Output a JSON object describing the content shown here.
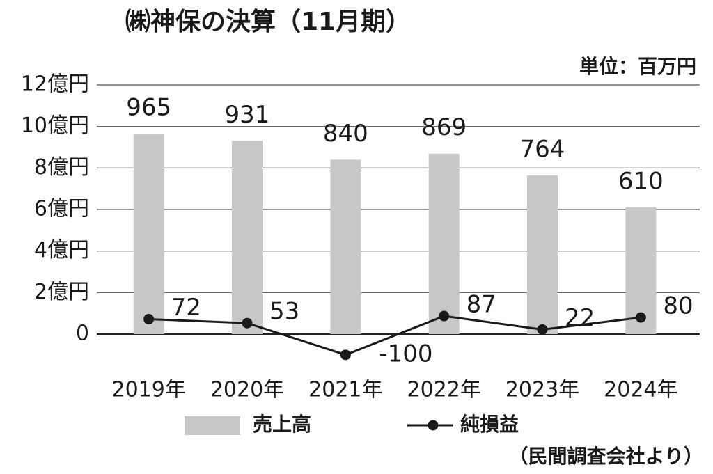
{
  "chart_data": {
    "type": "combo",
    "title": "㈱神保の決算（11月期）",
    "subtitle": "単位：百万円",
    "source": "（民間調査会社より）",
    "categories": [
      "2019年",
      "2020年",
      "2021年",
      "2022年",
      "2023年",
      "2024年"
    ],
    "series": [
      {
        "name": "売上高",
        "type": "bar",
        "color": "#c8c8c8",
        "values": [
          965,
          931,
          840,
          869,
          764,
          610
        ]
      },
      {
        "name": "純損益",
        "type": "line",
        "color": "#1a1a1a",
        "values": [
          72,
          53,
          -100,
          87,
          22,
          80
        ]
      }
    ],
    "ylim": [
      0,
      1200
    ],
    "yticks": [
      0,
      {
        "value": 200,
        "label": "2億円"
      },
      {
        "value": 400,
        "label": "4億円"
      },
      {
        "value": 600,
        "label": "6億円"
      },
      {
        "value": 800,
        "label": "8億円"
      },
      {
        "value": 1000,
        "label": "10億円"
      },
      {
        "value": 1200,
        "label": "12億円"
      }
    ],
    "grid": true
  }
}
